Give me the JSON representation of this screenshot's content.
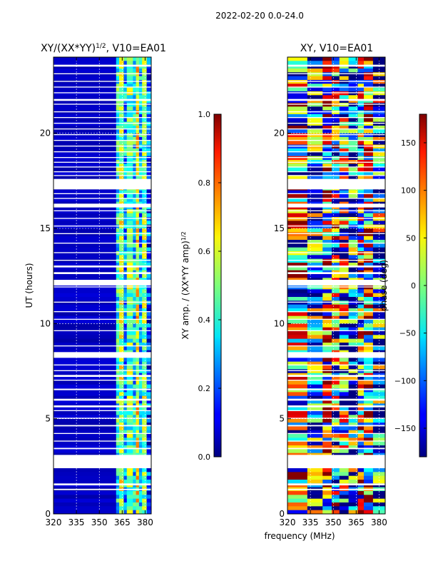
{
  "suptitle": "2022-02-20 0.0-24.0",
  "colors": {
    "frame": "#000000",
    "gap": "#ffffff",
    "grid": "#ffffff"
  },
  "chart_data": [
    {
      "type": "heatmap",
      "title_main": "XY/(XX*YY)",
      "title_sup": "1/2",
      "title_suffix": ", V10=EA01",
      "xlabel": "",
      "ylabel": "UT (hours)",
      "xlim": [
        320,
        384
      ],
      "ylim": [
        0,
        24
      ],
      "xticks": [
        320,
        335,
        350,
        365,
        380
      ],
      "yticks": [
        0,
        5,
        10,
        15,
        20
      ],
      "colormap": "jet",
      "band_edges_mhz": [
        320,
        361,
        363,
        366,
        368,
        372,
        374,
        376,
        378,
        381,
        384
      ],
      "band_values": [
        0.05,
        0.4,
        0.55,
        0.3,
        0.48,
        0.35,
        0.6,
        0.3,
        0.5,
        0.2
      ],
      "colorbar": {
        "label_main": "XY amp. / (XX*YY amp)",
        "label_sup": "1/2",
        "range": [
          0.0,
          1.0
        ],
        "ticks": [
          "0.0",
          "0.2",
          "0.4",
          "0.6",
          "0.8",
          "1.0"
        ]
      }
    },
    {
      "type": "heatmap",
      "title": "XY, V10=EA01",
      "xlabel": "frequency (MHz)",
      "ylabel": "",
      "xlim": [
        320,
        384
      ],
      "ylim": [
        0,
        24
      ],
      "xticks": [
        320,
        335,
        350,
        365,
        380
      ],
      "yticks": [
        0,
        5,
        10,
        15,
        20
      ],
      "colormap": "jet",
      "band_edges_mhz": [
        320,
        333,
        343,
        349,
        354,
        360,
        366,
        370,
        376,
        384
      ],
      "band_values": [
        0.5,
        0.25,
        0.6,
        0.45,
        0.35,
        0.2,
        0.55,
        0.7,
        0.3
      ],
      "colorbar": {
        "label": "phase (deg)",
        "range": [
          -180,
          180
        ],
        "ticks": [
          "−150",
          "−100",
          "−50",
          "0",
          "50",
          "100",
          "150"
        ],
        "tick_values": [
          -150,
          -100,
          -50,
          0,
          50,
          100,
          150
        ]
      }
    }
  ],
  "flagged_intervals_hours": [
    [
      2.4,
      3.1
    ],
    [
      1.5,
      1.6
    ],
    [
      1.25,
      1.32
    ],
    [
      3.4,
      3.47
    ],
    [
      3.8,
      3.85
    ],
    [
      4.2,
      4.25
    ],
    [
      4.6,
      4.67
    ],
    [
      5.0,
      5.05
    ],
    [
      5.4,
      5.45
    ],
    [
      5.6,
      5.7
    ],
    [
      5.95,
      6.05
    ],
    [
      6.5,
      6.58
    ],
    [
      7.0,
      7.05
    ],
    [
      7.2,
      7.3
    ],
    [
      7.5,
      7.55
    ],
    [
      7.8,
      7.85
    ],
    [
      8.2,
      8.5
    ],
    [
      8.8,
      8.85
    ],
    [
      9.6,
      9.65
    ],
    [
      10.2,
      10.25
    ],
    [
      10.6,
      10.65
    ],
    [
      11.1,
      11.15
    ],
    [
      11.9,
      11.95
    ],
    [
      12.0,
      12.3
    ],
    [
      12.6,
      12.7
    ],
    [
      12.95,
      13.05
    ],
    [
      13.3,
      13.35
    ],
    [
      13.7,
      13.75
    ],
    [
      14.2,
      14.25
    ],
    [
      14.7,
      14.75
    ],
    [
      15.1,
      15.15
    ],
    [
      15.5,
      15.55
    ],
    [
      15.9,
      15.95
    ],
    [
      16.1,
      16.3
    ],
    [
      16.55,
      16.6
    ],
    [
      16.8,
      16.85
    ],
    [
      17.05,
      17.6
    ],
    [
      17.75,
      17.8
    ],
    [
      17.95,
      18.0
    ],
    [
      18.2,
      18.25
    ],
    [
      18.45,
      18.5
    ],
    [
      18.7,
      18.75
    ],
    [
      19.0,
      19.05
    ],
    [
      19.3,
      19.35
    ],
    [
      19.6,
      19.65
    ],
    [
      19.9,
      19.95
    ],
    [
      20.2,
      20.25
    ],
    [
      20.5,
      20.55
    ],
    [
      20.8,
      20.85
    ],
    [
      21.1,
      21.15
    ],
    [
      21.5,
      21.55
    ],
    [
      21.7,
      21.8
    ],
    [
      22.1,
      22.15
    ],
    [
      22.4,
      22.45
    ],
    [
      22.7,
      22.75
    ],
    [
      23.1,
      23.15
    ],
    [
      23.5,
      23.6
    ]
  ]
}
